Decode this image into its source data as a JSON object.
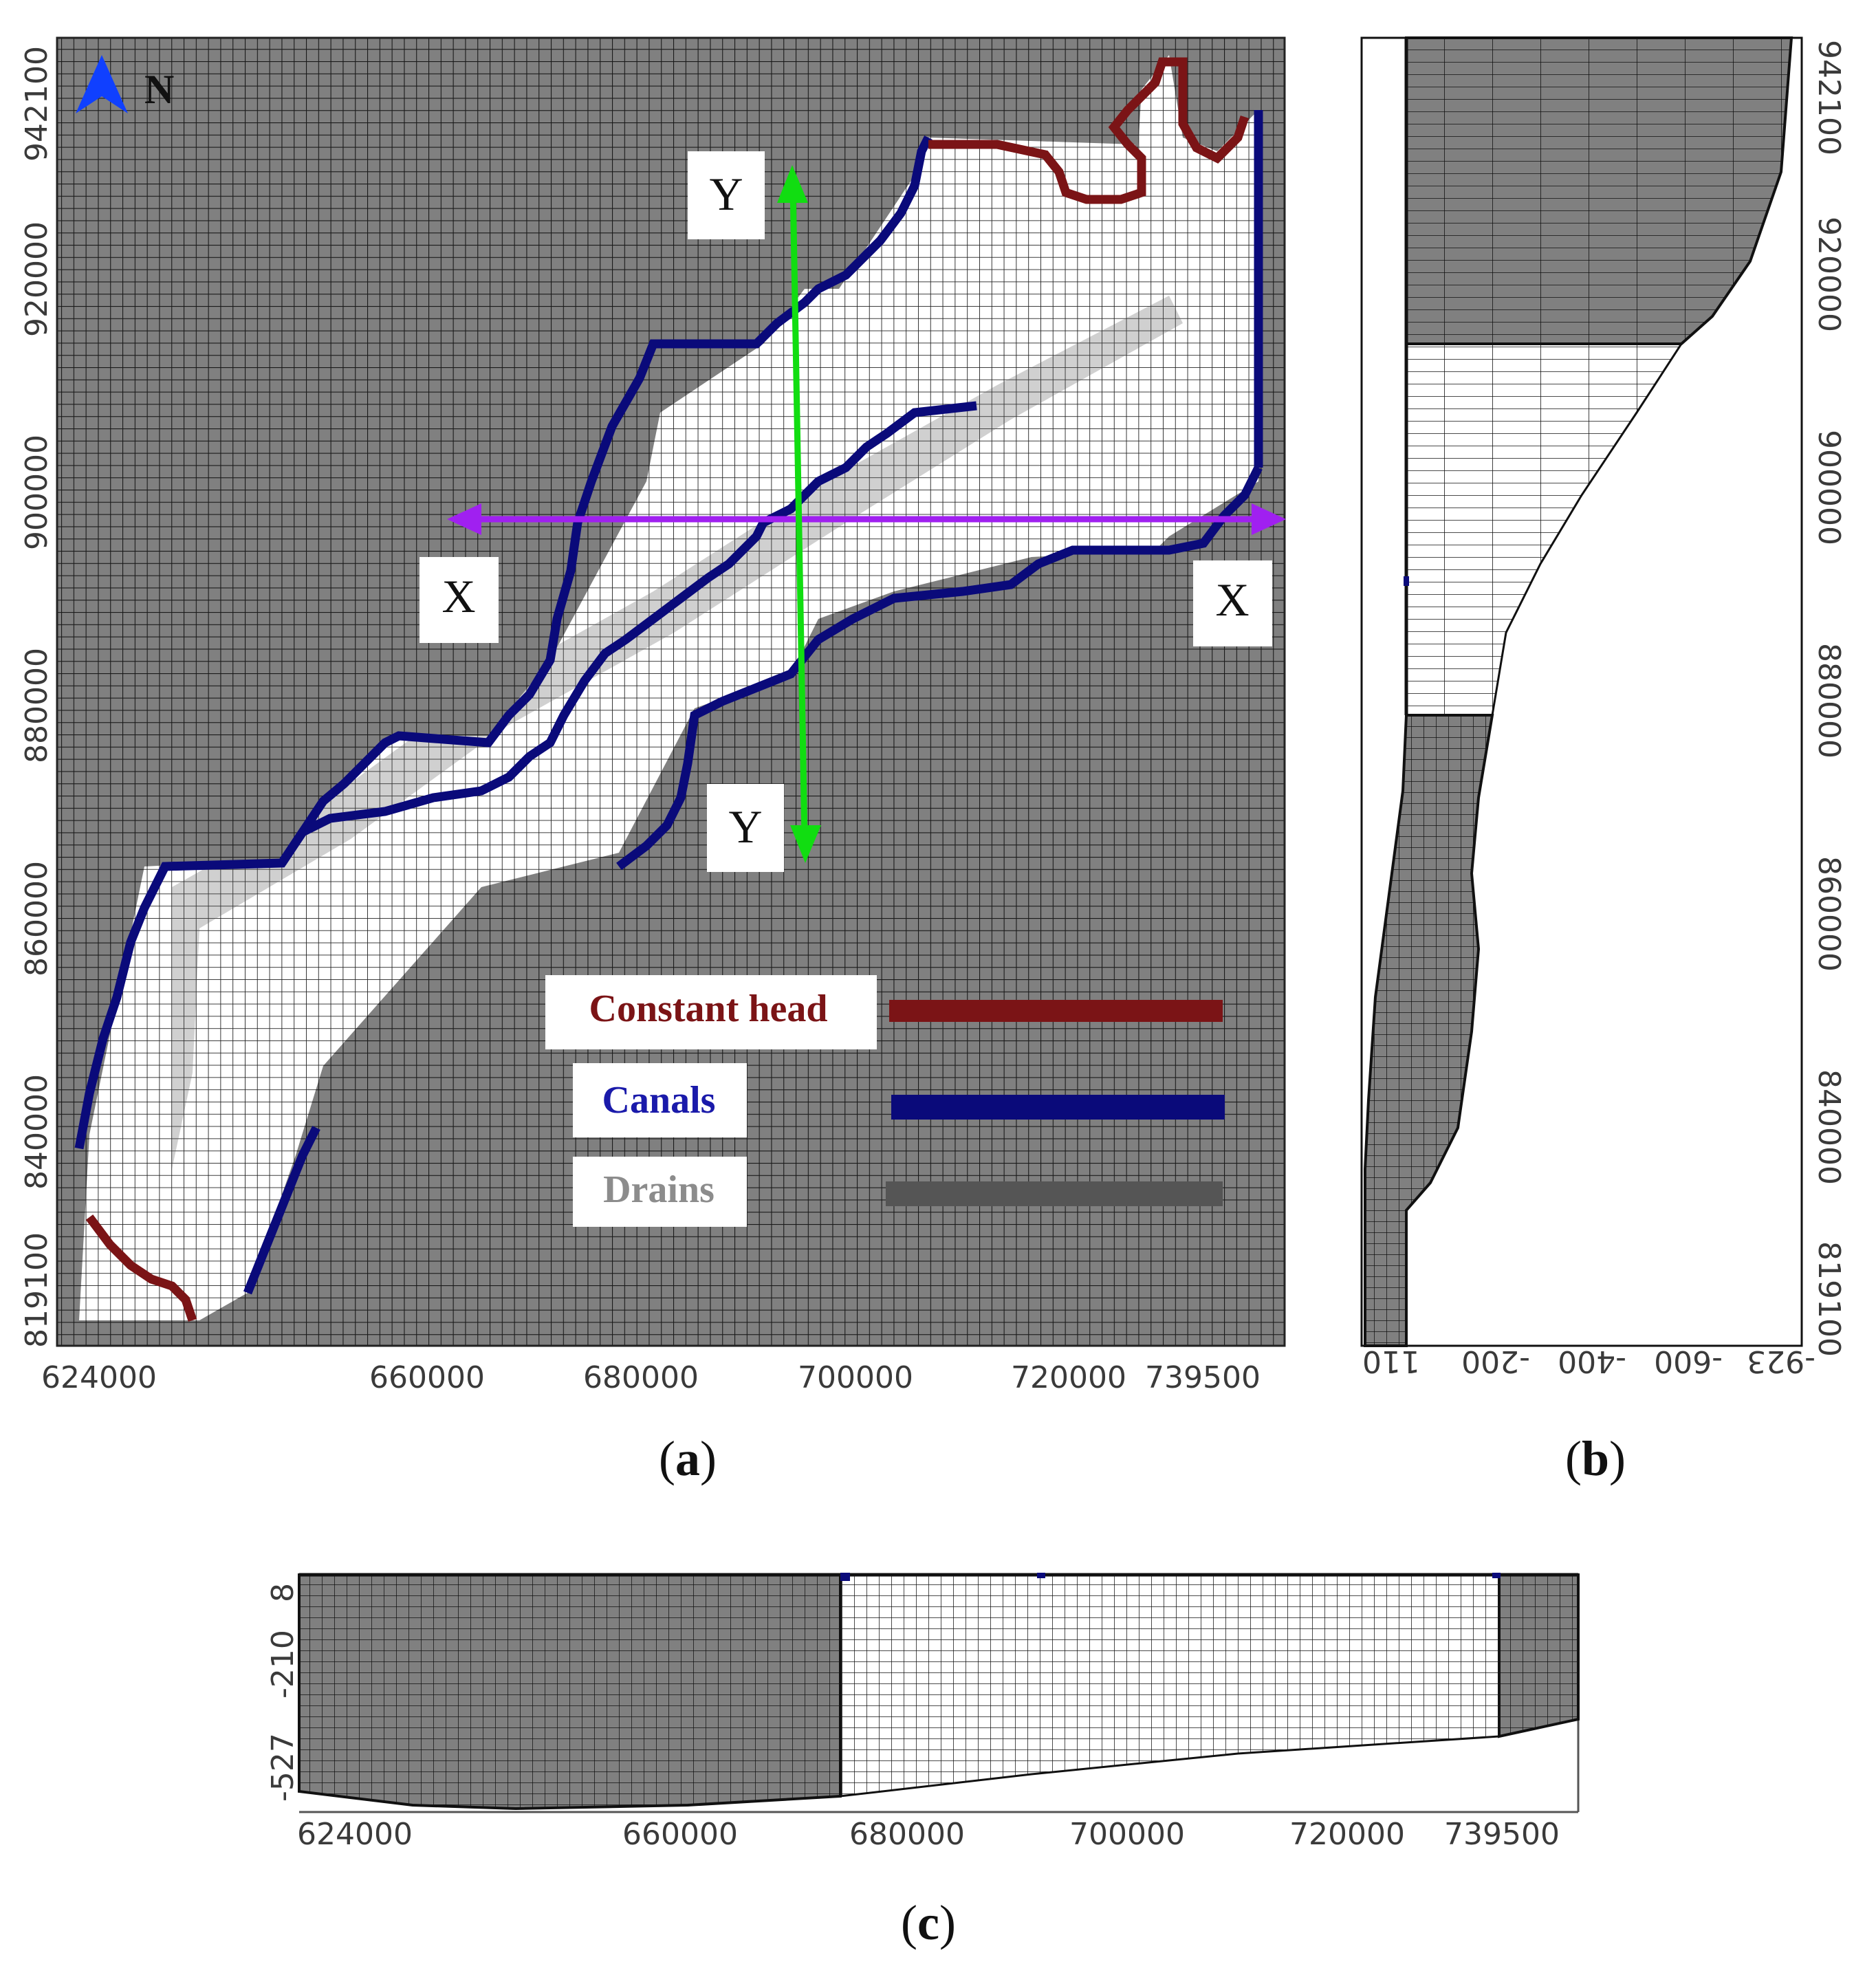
{
  "panel_a": {
    "label": "(a)",
    "label_letter": "a",
    "north": "N",
    "x_ticks": [
      "624000",
      "660000",
      "680000",
      "700000",
      "720000",
      "739500"
    ],
    "y_ticks": [
      "942100",
      "920000",
      "900000",
      "880000",
      "860000",
      "840000",
      "819100"
    ],
    "section_lines": {
      "x_left": "X",
      "x_right": "X",
      "y_top": "Y",
      "y_bottom": "Y"
    },
    "legend": [
      {
        "label": "Constant head",
        "color": "#7b1416"
      },
      {
        "label": "Canals",
        "color": "#1a1aaa"
      },
      {
        "label": "Drains",
        "color": "#8c8c8c"
      }
    ],
    "colors": {
      "inactive": "#808080",
      "active": "#ffffff",
      "drain": "#c8c8c8",
      "canal_boundary": "#0a0a7a",
      "constant_head": "#7b1416",
      "x_arrow": "#a020f0",
      "y_arrow": "#11dd11"
    }
  },
  "panel_b": {
    "label": "(b)",
    "label_letter": "b",
    "x_ticks": [
      "110",
      "-200",
      "-400",
      "-600",
      "-923"
    ],
    "y_ticks": [
      "942100",
      "920000",
      "900000",
      "880000",
      "860000",
      "840000",
      "819100"
    ]
  },
  "panel_c": {
    "label": "(c)",
    "label_letter": "c",
    "x_ticks": [
      "624000",
      "660000",
      "680000",
      "700000",
      "720000",
      "739500"
    ],
    "y_ticks": [
      "8",
      "-210",
      "-527"
    ]
  }
}
